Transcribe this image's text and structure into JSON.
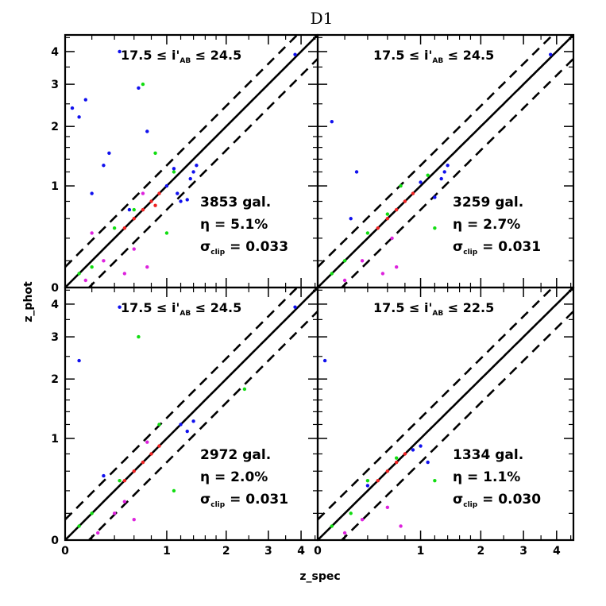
{
  "figure": {
    "title": "D1",
    "xlabel": "z_spec",
    "ylabel": "z_phot"
  },
  "chart_data": [
    {
      "type": "scatter",
      "panel": "top-left",
      "title": "17.5 ≤ i'_AB ≤ 24.5",
      "xlabel": "z_spec",
      "ylabel": "z_phot",
      "axis_scale": "log(1+z)",
      "xlim": [
        0,
        4.6
      ],
      "ylim": [
        0,
        4.6
      ],
      "x_ticks": [
        "0",
        "1",
        "2",
        "3",
        "4"
      ],
      "y_ticks": [
        "0",
        "1",
        "2",
        "3",
        "4"
      ],
      "stats": {
        "n_gal": "3853 gal.",
        "eta": "5.1%",
        "sigma": "0.033"
      },
      "lines": [
        {
          "name": "z_phot = z_spec",
          "style": "solid"
        },
        {
          "name": "z_phot = z_spec ± 0.15(1+z_spec)",
          "style": "dashed"
        }
      ],
      "series": [
        {
          "color": "#1010ee",
          "points": [
            [
              0.05,
              2.4
            ],
            [
              0.1,
              2.2
            ],
            [
              0.15,
              2.6
            ],
            [
              0.3,
              1.3
            ],
            [
              0.45,
              4.0
            ],
            [
              0.65,
              2.9
            ],
            [
              1.0,
              1.0
            ],
            [
              1.15,
              0.9
            ],
            [
              1.2,
              0.8
            ],
            [
              1.3,
              0.82
            ],
            [
              1.4,
              1.2
            ],
            [
              1.45,
              1.3
            ],
            [
              1.35,
              1.1
            ],
            [
              3.8,
              3.9
            ],
            [
              0.2,
              0.9
            ],
            [
              0.35,
              1.5
            ],
            [
              0.55,
              0.7
            ],
            [
              0.75,
              1.9
            ],
            [
              1.1,
              1.25
            ]
          ]
        },
        {
          "color": "#11dd11",
          "points": [
            [
              0.1,
              0.1
            ],
            [
              0.2,
              0.15
            ],
            [
              0.4,
              0.5
            ],
            [
              0.6,
              0.7
            ],
            [
              0.85,
              1.5
            ],
            [
              1.1,
              1.2
            ],
            [
              1.0,
              0.45
            ],
            [
              0.7,
              3.0
            ]
          ]
        },
        {
          "color": "#dd22dd",
          "points": [
            [
              0.15,
              0.05
            ],
            [
              0.3,
              0.2
            ],
            [
              0.5,
              0.1
            ],
            [
              0.6,
              0.3
            ],
            [
              0.7,
              0.9
            ],
            [
              0.75,
              0.15
            ],
            [
              0.2,
              0.45
            ]
          ]
        },
        {
          "color": "#ee2020",
          "points": [
            [
              0.5,
              0.5
            ],
            [
              0.6,
              0.6
            ],
            [
              0.7,
              0.7
            ],
            [
              0.8,
              0.8
            ],
            [
              0.9,
              0.9
            ],
            [
              0.85,
              0.75
            ]
          ]
        }
      ]
    },
    {
      "type": "scatter",
      "panel": "top-right",
      "title": "17.5 ≤ i'_AB ≤ 24.5",
      "xlabel": "z_spec",
      "ylabel": "z_phot",
      "axis_scale": "log(1+z)",
      "xlim": [
        0,
        4.6
      ],
      "ylim": [
        0,
        4.6
      ],
      "x_ticks": [
        "0",
        "1",
        "2",
        "3",
        "4"
      ],
      "y_ticks": [
        "0",
        "1",
        "2",
        "3",
        "4"
      ],
      "stats": {
        "n_gal": "3259 gal.",
        "eta": "2.7%",
        "sigma": "0.031"
      },
      "lines": [
        {
          "name": "z_phot = z_spec",
          "style": "solid"
        },
        {
          "name": "z_phot = z_spec ± 0.15(1+z_spec)",
          "style": "dashed"
        }
      ],
      "series": [
        {
          "color": "#1010ee",
          "points": [
            [
              0.1,
              2.1
            ],
            [
              0.3,
              1.2
            ],
            [
              1.0,
              1.05
            ],
            [
              1.2,
              0.85
            ],
            [
              1.3,
              1.1
            ],
            [
              1.4,
              1.3
            ],
            [
              1.35,
              1.2
            ],
            [
              3.8,
              3.9
            ],
            [
              0.25,
              0.6
            ]
          ]
        },
        {
          "color": "#11dd11",
          "points": [
            [
              0.1,
              0.1
            ],
            [
              0.2,
              0.2
            ],
            [
              0.4,
              0.45
            ],
            [
              0.6,
              0.65
            ],
            [
              1.1,
              1.15
            ],
            [
              1.2,
              0.5
            ],
            [
              0.75,
              1.0
            ]
          ]
        },
        {
          "color": "#dd22dd",
          "points": [
            [
              0.2,
              0.05
            ],
            [
              0.35,
              0.2
            ],
            [
              0.55,
              0.1
            ],
            [
              0.7,
              0.15
            ],
            [
              0.65,
              0.4
            ]
          ]
        },
        {
          "color": "#ee2020",
          "points": [
            [
              0.5,
              0.5
            ],
            [
              0.6,
              0.6
            ],
            [
              0.7,
              0.7
            ],
            [
              0.8,
              0.8
            ],
            [
              0.9,
              0.9
            ]
          ]
        }
      ]
    },
    {
      "type": "scatter",
      "panel": "bottom-left",
      "title": "17.5 ≤ i'_AB ≤ 24.5",
      "xlabel": "z_spec",
      "ylabel": "z_phot",
      "axis_scale": "log(1+z)",
      "xlim": [
        0,
        4.6
      ],
      "ylim": [
        0,
        4.6
      ],
      "x_ticks": [
        "0",
        "1",
        "2",
        "3",
        "4"
      ],
      "y_ticks": [
        "0",
        "1",
        "2",
        "3",
        "4"
      ],
      "stats": {
        "n_gal": "2972 gal.",
        "eta": "2.0%",
        "sigma": "0.031"
      },
      "lines": [
        {
          "name": "z_phot = z_spec",
          "style": "solid"
        },
        {
          "name": "z_phot = z_spec ± 0.15(1+z_spec)",
          "style": "dashed"
        }
      ],
      "series": [
        {
          "color": "#1010ee",
          "points": [
            [
              0.1,
              2.4
            ],
            [
              0.45,
              3.9
            ],
            [
              1.2,
              1.2
            ],
            [
              1.3,
              1.1
            ],
            [
              1.4,
              1.25
            ],
            [
              3.8,
              3.9
            ],
            [
              0.3,
              0.55
            ]
          ]
        },
        {
          "color": "#11dd11",
          "points": [
            [
              0.1,
              0.1
            ],
            [
              0.2,
              0.2
            ],
            [
              0.45,
              0.5
            ],
            [
              0.65,
              3.0
            ],
            [
              1.1,
              0.4
            ],
            [
              0.9,
              1.2
            ],
            [
              2.4,
              1.8
            ]
          ]
        },
        {
          "color": "#dd22dd",
          "points": [
            [
              0.25,
              0.05
            ],
            [
              0.4,
              0.2
            ],
            [
              0.6,
              0.15
            ],
            [
              0.75,
              0.95
            ],
            [
              0.5,
              0.3
            ]
          ]
        },
        {
          "color": "#ee2020",
          "points": [
            [
              0.5,
              0.5
            ],
            [
              0.6,
              0.6
            ],
            [
              0.7,
              0.7
            ],
            [
              0.8,
              0.8
            ],
            [
              0.9,
              0.9
            ]
          ]
        }
      ]
    },
    {
      "type": "scatter",
      "panel": "bottom-right",
      "title": "17.5 ≤ i'_AB ≤ 22.5",
      "xlabel": "z_spec",
      "ylabel": "z_phot",
      "axis_scale": "log(1+z)",
      "xlim": [
        0,
        4.6
      ],
      "ylim": [
        0,
        4.6
      ],
      "x_ticks": [
        "0",
        "1",
        "2",
        "3",
        "4"
      ],
      "y_ticks": [
        "0",
        "1",
        "2",
        "3",
        "4"
      ],
      "stats": {
        "n_gal": "1334 gal.",
        "eta": "1.1%",
        "sigma": "0.030"
      },
      "lines": [
        {
          "name": "z_phot = z_spec",
          "style": "solid"
        },
        {
          "name": "z_phot = z_spec ± 0.15(1+z_spec)",
          "style": "dashed"
        }
      ],
      "series": [
        {
          "color": "#1010ee",
          "points": [
            [
              0.05,
              2.4
            ],
            [
              0.9,
              0.85
            ],
            [
              1.0,
              0.9
            ],
            [
              1.1,
              0.7
            ],
            [
              0.4,
              0.45
            ]
          ]
        },
        {
          "color": "#11dd11",
          "points": [
            [
              0.1,
              0.1
            ],
            [
              0.25,
              0.2
            ],
            [
              0.4,
              0.5
            ],
            [
              0.7,
              0.75
            ],
            [
              1.2,
              0.5
            ]
          ]
        },
        {
          "color": "#dd22dd",
          "points": [
            [
              0.2,
              0.05
            ],
            [
              0.35,
              0.15
            ],
            [
              0.6,
              0.25
            ],
            [
              0.75,
              0.1
            ]
          ]
        },
        {
          "color": "#ee2020",
          "points": [
            [
              0.5,
              0.5
            ],
            [
              0.6,
              0.6
            ],
            [
              0.7,
              0.7
            ],
            [
              0.8,
              0.8
            ]
          ]
        }
      ]
    }
  ]
}
